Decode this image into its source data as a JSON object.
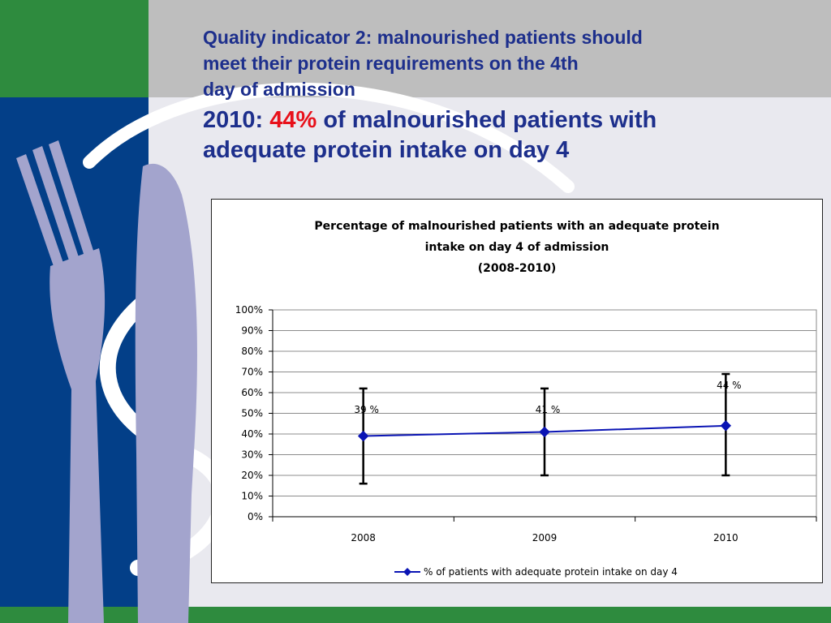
{
  "slide": {
    "title_lines": [
      "Quality indicator 2: malnourished patients should",
      "meet their protein requirements on the 4th",
      "day of admission"
    ],
    "subtitle_prefix": "2010: ",
    "subtitle_highlight": "44%",
    "subtitle_rest": " of malnourished patients with",
    "subtitle_line2": "adequate  protein  intake on day 4",
    "colors": {
      "title": "#1d2f8c",
      "highlight": "#e8101a",
      "green_band": "#2e8b3e",
      "navy_panel": "#033f88",
      "grey_band": "#bebebe",
      "cutlery": "#a3a4cd"
    }
  },
  "chart_data": {
    "type": "line",
    "title_lines": [
      "Percentage of malnourished patients with an adequate protein",
      "intake on day 4 of admission",
      "(2008-2010)"
    ],
    "categories": [
      "2008",
      "2009",
      "2010"
    ],
    "series": [
      {
        "name": "% of patients with adequate protein intake on day 4",
        "values": [
          39,
          41,
          44
        ],
        "data_labels": [
          "39 %",
          "41 %",
          "44 %"
        ],
        "error_low": [
          16,
          20,
          20
        ],
        "error_high": [
          62,
          62,
          69
        ],
        "color": "#0a14b4",
        "marker": "diamond"
      }
    ],
    "yticks": [
      "0%",
      "10%",
      "20%",
      "30%",
      "40%",
      "50%",
      "60%",
      "70%",
      "80%",
      "90%",
      "100%"
    ],
    "ylim": [
      0,
      100
    ],
    "grid": true,
    "legend": "bottom",
    "xlabel": "",
    "ylabel": ""
  }
}
